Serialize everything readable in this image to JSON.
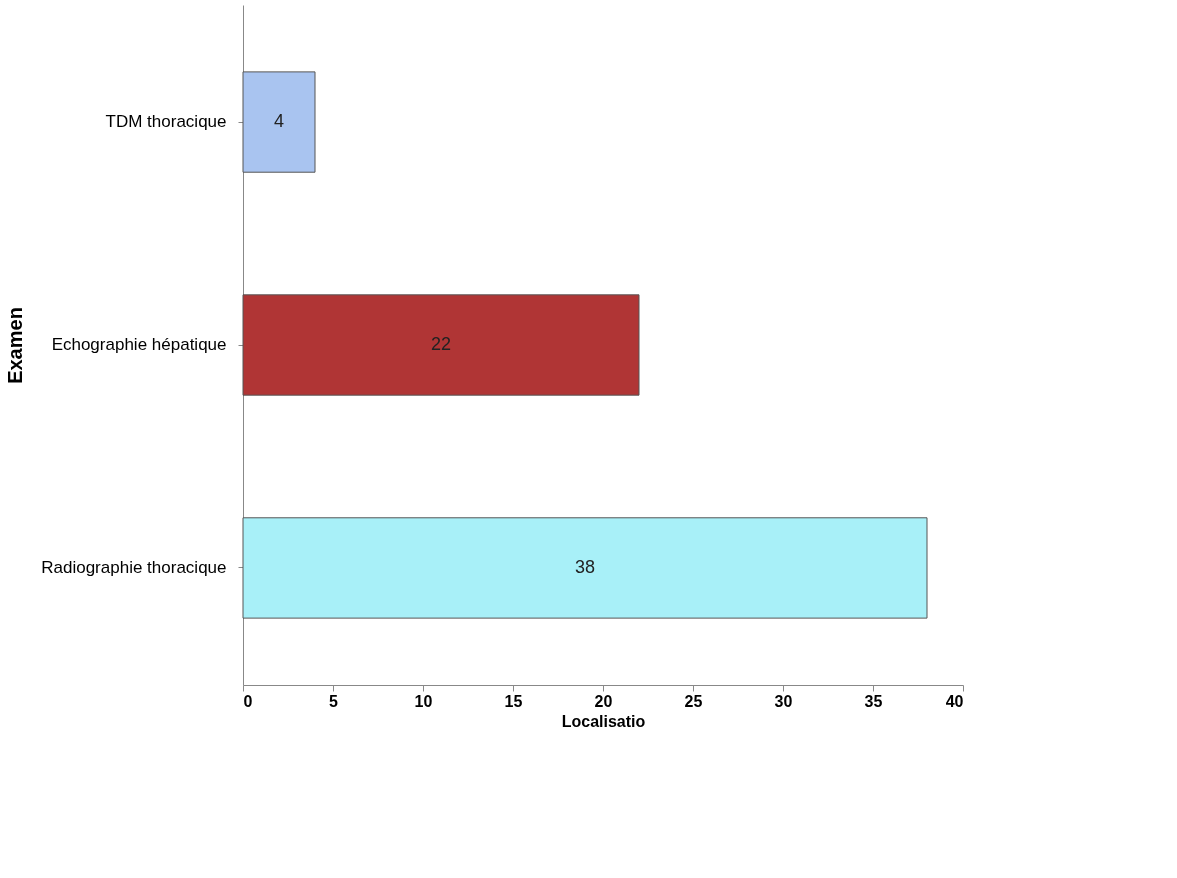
{
  "chart_data": {
    "type": "bar",
    "orientation": "horizontal",
    "categories": [
      "TDM thoracique",
      "Echographie hépatique",
      "Radiographie thoracique"
    ],
    "values": [
      4,
      22,
      38
    ],
    "colors": [
      "#a9c4f0",
      "#b03535",
      "#a8f0f8"
    ],
    "xlabel": "Localisatio",
    "ylabel": "Examen",
    "xlim": [
      0,
      40
    ],
    "xticks": [
      0,
      5,
      10,
      15,
      20,
      25,
      30,
      35,
      40
    ],
    "data_labels": true,
    "grid": false
  }
}
